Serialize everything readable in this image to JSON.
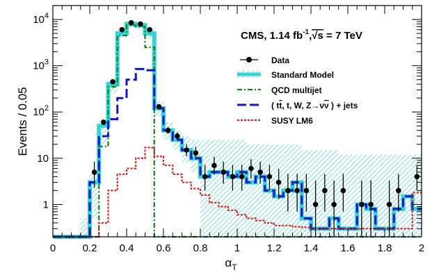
{
  "chart_data": {
    "type": "histogram",
    "title": "CMS, 1.14 fb⁻¹, √s = 7 TeV",
    "xlabel": "αT",
    "ylabel": "Events / 0.05",
    "xlim": [
      0,
      2
    ],
    "ylim": [
      0.2,
      20000
    ],
    "yscale": "log",
    "grid": false,
    "legend_position": "top-right",
    "xticks": [
      "0",
      "0.2",
      "0.4",
      "0.6",
      "0.8",
      "1",
      "1.2",
      "1.4",
      "1.6",
      "1.8",
      "2"
    ],
    "yticks": [
      "1",
      "10",
      "10²",
      "10³",
      "10⁴"
    ],
    "bin_edges": [
      0,
      0.05,
      0.1,
      0.15,
      0.2,
      0.25,
      0.3,
      0.35,
      0.4,
      0.45,
      0.5,
      0.55,
      0.6,
      0.65,
      0.7,
      0.75,
      0.8,
      0.85,
      0.9,
      0.95,
      1.0,
      1.05,
      1.1,
      1.15,
      1.2,
      1.25,
      1.3,
      1.35,
      1.4,
      1.45,
      1.5,
      1.55,
      1.6,
      1.65,
      1.7,
      1.75,
      1.8,
      1.85,
      1.9,
      1.95,
      2.0
    ],
    "legend": [
      {
        "label": "Data",
        "style": "marker"
      },
      {
        "label": "Standard Model",
        "style": "band"
      },
      {
        "label": "QCD multijet",
        "style": "dashdot"
      },
      {
        "label": "( tt̄, t, W, Z→νν̄ ) + jets",
        "style": "dashed"
      },
      {
        "label": "SUSY LM6",
        "style": "dotted"
      }
    ],
    "series": [
      {
        "name": "Data",
        "type": "points",
        "color": "#000000",
        "x": [
          0.225,
          0.275,
          0.325,
          0.375,
          0.425,
          0.475,
          0.525,
          0.575,
          0.625,
          0.675,
          0.725,
          0.775,
          0.825,
          0.875,
          0.925,
          0.975,
          1.025,
          1.075,
          1.125,
          1.175,
          1.225,
          1.275,
          1.325,
          1.375,
          1.425,
          1.475,
          1.525,
          1.575,
          1.675,
          1.725,
          1.825,
          1.875,
          1.975
        ],
        "y": [
          5,
          60,
          450,
          6000,
          8500,
          8000,
          6000,
          130,
          40,
          30,
          15,
          13,
          4,
          7,
          5,
          4,
          4,
          6,
          5,
          4,
          3,
          2,
          2,
          2,
          1,
          2,
          1,
          2,
          1,
          1,
          1,
          2,
          4
        ],
        "err_low": [
          2.7,
          7.7,
          21,
          77,
          92,
          89,
          77,
          11.4,
          6.3,
          5.5,
          3.9,
          3.6,
          2.0,
          2.6,
          2.2,
          2.0,
          2.0,
          2.4,
          2.2,
          2.0,
          1.7,
          1.3,
          1.3,
          1.3,
          0.83,
          1.3,
          0.83,
          1.3,
          0.83,
          0.83,
          0.83,
          1.3,
          2.0
        ],
        "err_high": [
          3.4,
          8.8,
          22,
          78,
          93,
          90,
          78,
          12.4,
          7.4,
          6.6,
          5.0,
          4.6,
          3.2,
          3.7,
          3.4,
          3.2,
          3.2,
          3.6,
          3.4,
          3.2,
          2.9,
          2.6,
          2.6,
          2.6,
          2.3,
          2.6,
          2.3,
          2.6,
          2.3,
          2.3,
          2.3,
          2.6,
          3.2
        ]
      },
      {
        "name": "Standard Model",
        "type": "step",
        "color": "#3fd0d0",
        "values": [
          0.2,
          0.2,
          0.2,
          0.2,
          3,
          50,
          400,
          5000,
          8000,
          7500,
          5000,
          120,
          40,
          25,
          15,
          10,
          4,
          5,
          5,
          4,
          5,
          3,
          4,
          2,
          1.5,
          2,
          3,
          0.5,
          0.3,
          0.3,
          0.5,
          0.3,
          0.3,
          1,
          0.8,
          0.3,
          0.3,
          0.8,
          1.5,
          0.8
        ],
        "band_low": [
          0.2,
          0.2,
          0.2,
          0.2,
          0.5,
          20,
          250,
          4000,
          6800,
          6300,
          3800,
          80,
          25,
          15,
          8,
          5,
          0.2,
          0.2,
          0.2,
          0.2,
          0.2,
          0.2,
          0.2,
          0.2,
          0.2,
          0.2,
          0.2,
          0.2,
          0.2,
          0.2,
          0.2,
          0.2,
          0.2,
          0.2,
          0.2,
          0.2,
          0.2,
          0.2,
          0.2,
          0.2
        ],
        "band_high": [
          0.2,
          0.2,
          0.2,
          0.5,
          4.5,
          70,
          520,
          6200,
          9500,
          9000,
          6300,
          170,
          60,
          40,
          30,
          25,
          25,
          25,
          25,
          25,
          25,
          20,
          20,
          20,
          20,
          20,
          20,
          15,
          15,
          15,
          15,
          12,
          12,
          12,
          12,
          12,
          12,
          12,
          12,
          12
        ]
      },
      {
        "name": "QCD multijet",
        "type": "step",
        "color": "#1a7f1a",
        "values": [
          0.2,
          0.2,
          0.2,
          0.2,
          0.2,
          18,
          350,
          4500,
          7500,
          7000,
          2500,
          0.2,
          0.2,
          0.2,
          0.2,
          0.2,
          0.2,
          0.2,
          0.2,
          0.2,
          0.2,
          0.2,
          0.2,
          0.2,
          0.2,
          0.2,
          0.2,
          0.2,
          0.2,
          0.2,
          0.2,
          0.2,
          0.2,
          0.2,
          0.2,
          0.2,
          0.2,
          0.2,
          0.2,
          0.2
        ]
      },
      {
        "name": "( tt̄, t, W, Z→νν̄ ) + jets",
        "type": "step",
        "color": "#1414c8",
        "values": [
          0.2,
          0.2,
          0.2,
          0.2,
          3,
          30,
          70,
          200,
          500,
          850,
          800,
          120,
          40,
          25,
          15,
          10,
          4,
          5,
          5,
          4,
          5,
          3,
          4,
          2,
          1.5,
          2,
          3,
          0.5,
          0.3,
          0.3,
          0.5,
          0.3,
          0.3,
          1,
          0.8,
          0.3,
          0.3,
          0.8,
          1.5,
          0.8
        ]
      },
      {
        "name": "SUSY LM6",
        "type": "step",
        "color": "#d42020",
        "values": [
          0.2,
          0.2,
          0.2,
          0.2,
          0.2,
          0.4,
          2.0,
          4.5,
          6.0,
          10,
          17,
          11,
          7,
          4.5,
          3,
          2.2,
          1.6,
          1.1,
          0.9,
          0.75,
          0.6,
          0.5,
          0.45,
          0.4,
          0.35,
          0.35,
          0.33,
          0.32,
          0.3,
          0.3,
          0.3,
          0.3,
          0.3,
          0.3,
          0.3,
          0.3,
          0.3,
          0.3,
          0.3,
          1.8
        ]
      }
    ]
  },
  "page": {
    "title_main": "CMS, 1.14 fb",
    "title_sup": "-1",
    "title_mid": ",",
    "title_sqrt": "√s",
    "title_tail": " = 7 TeV",
    "ylabel": "Events / 0.05",
    "xlabel_alpha": "α",
    "xlabel_sub": "T",
    "legend_data": "Data",
    "legend_sm": "Standard Model",
    "legend_qcd": "QCD multijet",
    "legend_ewk_a": "( t",
    "legend_ewk_tbar": "t",
    "legend_ewk_b": ", t, W, Z→ν",
    "legend_ewk_nubar": "ν",
    "legend_ewk_c": " ) + jets",
    "legend_susy": "SUSY LM6",
    "yticks": [
      {
        "base": "1",
        "sup": ""
      },
      {
        "base": "10",
        "sup": ""
      },
      {
        "base": "10",
        "sup": "2"
      },
      {
        "base": "10",
        "sup": "3"
      },
      {
        "base": "10",
        "sup": "4"
      }
    ]
  }
}
